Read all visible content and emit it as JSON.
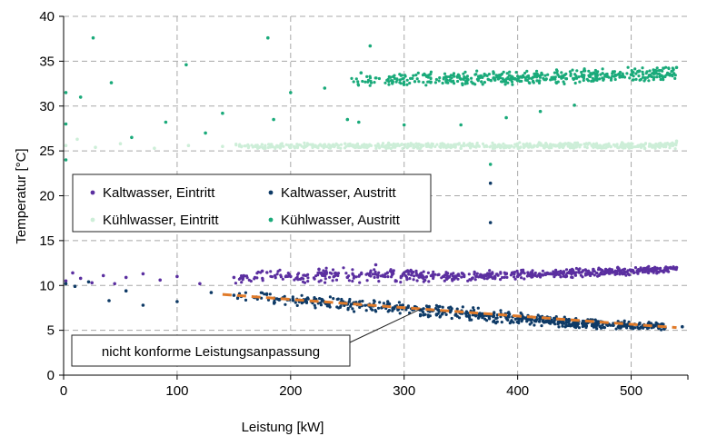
{
  "chart_data": {
    "type": "scatter",
    "title": "",
    "xlabel": "Leistung [kW]",
    "ylabel": "Temperatur [°C]",
    "xlim": [
      0,
      550
    ],
    "ylim": [
      0,
      40
    ],
    "xticks": [
      0,
      100,
      200,
      300,
      400,
      500
    ],
    "yticks": [
      0,
      5,
      10,
      15,
      20,
      25,
      30,
      35,
      40
    ],
    "grid": true,
    "legend_position": "left, upper middle",
    "series": [
      {
        "name": "Kaltwasser, Eintritt",
        "color": "#5b2fa0",
        "points": [
          [
            2,
            10.5
          ],
          [
            8,
            11.4
          ],
          [
            15,
            10.8
          ],
          [
            25,
            10.3
          ],
          [
            35,
            11.1
          ],
          [
            45,
            10.2
          ],
          [
            55,
            10.9
          ],
          [
            70,
            11.3
          ],
          [
            85,
            10.6
          ],
          [
            100,
            11.0
          ],
          [
            120,
            10.2
          ],
          [
            150,
            10.9
          ],
          [
            175,
            11.6
          ],
          [
            200,
            11.0
          ],
          [
            225,
            11.8
          ],
          [
            250,
            10.9
          ],
          [
            275,
            12.3
          ],
          [
            300,
            11.4
          ],
          [
            325,
            11.2
          ],
          [
            340,
            11.0
          ],
          [
            360,
            10.8
          ],
          [
            380,
            10.9
          ],
          [
            400,
            11.0
          ],
          [
            420,
            11.1
          ],
          [
            440,
            11.3
          ],
          [
            460,
            11.3
          ],
          [
            480,
            11.5
          ],
          [
            500,
            11.6
          ],
          [
            520,
            11.8
          ],
          [
            540,
            12.0
          ]
        ],
        "band_low": [
          [
            150,
            10.2
          ],
          [
            250,
            10.2
          ],
          [
            350,
            10.4
          ],
          [
            450,
            10.8
          ],
          [
            540,
            11.4
          ]
        ],
        "band_high": [
          [
            150,
            11.8
          ],
          [
            250,
            12.2
          ],
          [
            350,
            11.6
          ],
          [
            450,
            12.0
          ],
          [
            540,
            12.2
          ]
        ]
      },
      {
        "name": "Kaltwasser, Austritt",
        "color": "#0e3a66",
        "points": [
          [
            2,
            10.2
          ],
          [
            10,
            9.9
          ],
          [
            22,
            10.4
          ],
          [
            40,
            8.3
          ],
          [
            55,
            9.4
          ],
          [
            70,
            7.8
          ],
          [
            100,
            8.2
          ],
          [
            130,
            9.2
          ],
          [
            150,
            8.9
          ],
          [
            170,
            8.7
          ],
          [
            190,
            8.4
          ],
          [
            210,
            8.3
          ],
          [
            230,
            8.1
          ],
          [
            250,
            7.9
          ],
          [
            270,
            7.7
          ],
          [
            290,
            7.4
          ],
          [
            310,
            7.6
          ],
          [
            330,
            7.3
          ],
          [
            350,
            6.9
          ],
          [
            370,
            6.6
          ],
          [
            390,
            6.4
          ],
          [
            410,
            6.2
          ],
          [
            430,
            6.0
          ],
          [
            450,
            5.7
          ],
          [
            470,
            5.6
          ],
          [
            490,
            5.6
          ],
          [
            510,
            5.4
          ],
          [
            530,
            5.3
          ],
          [
            545,
            5.4
          ],
          [
            376,
            17.0
          ],
          [
            376,
            21.4
          ]
        ],
        "band_low": [
          [
            150,
            8.2
          ],
          [
            250,
            7.1
          ],
          [
            350,
            6.0
          ],
          [
            450,
            5.2
          ],
          [
            530,
            4.9
          ]
        ],
        "band_high": [
          [
            150,
            9.6
          ],
          [
            250,
            8.6
          ],
          [
            350,
            7.8
          ],
          [
            450,
            6.4
          ],
          [
            530,
            5.9
          ]
        ]
      },
      {
        "name": "Kühlwasser, Eintritt",
        "color": "#cdeed8",
        "points": [
          [
            2,
            25.6
          ],
          [
            12,
            26.3
          ],
          [
            28,
            25.4
          ],
          [
            50,
            25.8
          ],
          [
            80,
            25.3
          ],
          [
            110,
            25.6
          ],
          [
            140,
            25.5
          ],
          [
            170,
            25.5
          ],
          [
            200,
            25.4
          ],
          [
            230,
            25.7
          ],
          [
            260,
            25.4
          ],
          [
            290,
            25.6
          ],
          [
            320,
            25.5
          ],
          [
            350,
            25.3
          ],
          [
            380,
            25.6
          ],
          [
            410,
            25.5
          ],
          [
            440,
            25.4
          ],
          [
            470,
            25.6
          ],
          [
            500,
            25.5
          ],
          [
            530,
            25.8
          ],
          [
            540,
            26.1
          ]
        ],
        "band_low": [
          [
            150,
            25.2
          ],
          [
            540,
            25.2
          ]
        ],
        "band_high": [
          [
            150,
            25.9
          ],
          [
            540,
            26.0
          ]
        ]
      },
      {
        "name": "Kühlwasser, Austritt",
        "color": "#1aaa7a",
        "points": [
          [
            2,
            24.0
          ],
          [
            2,
            28.0
          ],
          [
            2,
            31.5
          ],
          [
            15,
            31.0
          ],
          [
            26,
            37.6
          ],
          [
            42,
            32.6
          ],
          [
            60,
            26.5
          ],
          [
            90,
            28.2
          ],
          [
            108,
            34.6
          ],
          [
            125,
            27.0
          ],
          [
            140,
            29.2
          ],
          [
            180,
            37.6
          ],
          [
            185,
            28.5
          ],
          [
            200,
            31.5
          ],
          [
            230,
            32.0
          ],
          [
            262,
            33.7
          ],
          [
            270,
            36.7
          ],
          [
            290,
            32.7
          ],
          [
            320,
            33.3
          ],
          [
            350,
            33.0
          ],
          [
            380,
            32.9
          ],
          [
            410,
            33.1
          ],
          [
            440,
            33.2
          ],
          [
            470,
            33.4
          ],
          [
            500,
            33.5
          ],
          [
            520,
            33.6
          ],
          [
            540,
            34.3
          ],
          [
            260,
            28.2
          ],
          [
            300,
            27.9
          ],
          [
            350,
            27.9
          ],
          [
            390,
            28.7
          ],
          [
            420,
            29.4
          ],
          [
            450,
            30.1
          ],
          [
            250,
            28.5
          ],
          [
            376,
            23.5
          ]
        ],
        "band_low": [
          [
            250,
            32.0
          ],
          [
            400,
            32.3
          ],
          [
            540,
            32.8
          ]
        ],
        "band_high": [
          [
            250,
            33.8
          ],
          [
            400,
            34.0
          ],
          [
            540,
            34.5
          ]
        ]
      }
    ],
    "trend_line": {
      "color": "#e07b2a",
      "points": [
        [
          140,
          9.0
        ],
        [
          540,
          5.3
        ]
      ]
    },
    "annotation": {
      "text": "nicht konforme Leistungsanpassung",
      "target": [
        315,
        7.4
      ]
    }
  }
}
